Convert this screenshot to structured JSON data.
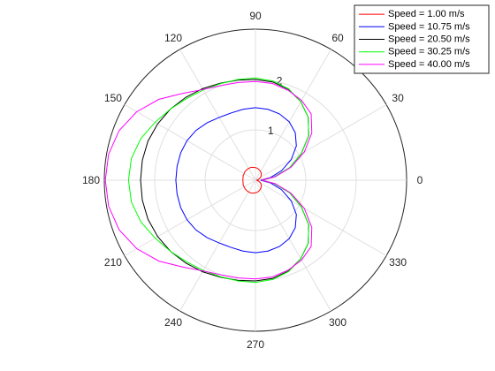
{
  "chart_data": {
    "type": "polar-line",
    "theta_unit": "degrees",
    "theta_ticks": [
      0,
      30,
      60,
      90,
      120,
      150,
      180,
      210,
      240,
      270,
      300,
      330
    ],
    "rlim": [
      0,
      3
    ],
    "r_ticks": [
      1,
      2
    ],
    "r_tick_labels": [
      "1",
      "2"
    ],
    "r_tick_label_angle": 80,
    "grid": true,
    "legend_placement": "top-right",
    "series": [
      {
        "name": "Speed = 1.00 m/s",
        "color": "#ff0000",
        "theta": [
          0,
          10,
          20,
          30,
          40,
          50,
          60,
          70,
          80,
          90,
          100,
          110,
          120,
          130,
          140,
          150,
          160,
          170,
          180,
          190,
          200,
          210,
          220,
          230,
          240,
          250,
          260,
          270,
          280,
          290,
          300,
          310,
          320,
          330,
          340,
          350,
          360
        ],
        "r": [
          0.02,
          0.05,
          0.08,
          0.12,
          0.15,
          0.18,
          0.2,
          0.22,
          0.24,
          0.25,
          0.26,
          0.27,
          0.27,
          0.27,
          0.27,
          0.26,
          0.26,
          0.25,
          0.25,
          0.25,
          0.26,
          0.26,
          0.27,
          0.27,
          0.27,
          0.27,
          0.26,
          0.25,
          0.24,
          0.22,
          0.2,
          0.18,
          0.15,
          0.12,
          0.08,
          0.05,
          0.02
        ]
      },
      {
        "name": "Speed = 10.75 m/s",
        "color": "#0000ff",
        "theta": [
          0,
          10,
          20,
          30,
          40,
          50,
          60,
          70,
          80,
          90,
          100,
          110,
          120,
          130,
          140,
          150,
          160,
          170,
          180,
          190,
          200,
          210,
          220,
          230,
          240,
          250,
          260,
          270,
          280,
          290,
          300,
          310,
          320,
          330,
          340,
          350,
          360
        ],
        "r": [
          0.1,
          0.3,
          0.55,
          0.82,
          1.06,
          1.23,
          1.34,
          1.4,
          1.43,
          1.44,
          1.43,
          1.42,
          1.44,
          1.49,
          1.54,
          1.57,
          1.58,
          1.58,
          1.58,
          1.58,
          1.58,
          1.57,
          1.54,
          1.49,
          1.44,
          1.42,
          1.43,
          1.44,
          1.43,
          1.4,
          1.34,
          1.23,
          1.06,
          0.82,
          0.55,
          0.3,
          0.1
        ]
      },
      {
        "name": "Speed = 20.50 m/s",
        "color": "#000000",
        "theta": [
          0,
          10,
          20,
          30,
          40,
          50,
          60,
          70,
          80,
          90,
          100,
          110,
          120,
          130,
          140,
          150,
          160,
          170,
          180,
          190,
          200,
          210,
          220,
          230,
          240,
          250,
          260,
          270,
          280,
          290,
          300,
          310,
          320,
          330,
          340,
          350,
          360
        ],
        "r": [
          0.12,
          0.38,
          0.72,
          1.05,
          1.38,
          1.63,
          1.8,
          1.92,
          1.98,
          2.0,
          2.02,
          2.05,
          2.1,
          2.15,
          2.2,
          2.24,
          2.27,
          2.28,
          2.28,
          2.28,
          2.27,
          2.24,
          2.2,
          2.15,
          2.1,
          2.05,
          2.02,
          2.0,
          1.98,
          1.92,
          1.8,
          1.63,
          1.38,
          1.05,
          0.72,
          0.38,
          0.12
        ]
      },
      {
        "name": "Speed = 30.25 m/s",
        "color": "#00ff00",
        "theta": [
          0,
          10,
          20,
          30,
          40,
          50,
          60,
          70,
          80,
          90,
          100,
          110,
          120,
          130,
          140,
          150,
          160,
          170,
          180,
          190,
          200,
          210,
          220,
          230,
          240,
          250,
          260,
          270,
          280,
          290,
          300,
          310,
          320,
          330,
          340,
          350,
          360
        ],
        "r": [
          0.12,
          0.38,
          0.72,
          1.05,
          1.38,
          1.63,
          1.8,
          1.93,
          2.0,
          2.03,
          2.03,
          2.04,
          2.07,
          2.12,
          2.2,
          2.3,
          2.42,
          2.5,
          2.52,
          2.5,
          2.42,
          2.3,
          2.2,
          2.12,
          2.07,
          2.04,
          2.03,
          2.03,
          2.0,
          1.93,
          1.8,
          1.63,
          1.38,
          1.05,
          0.72,
          0.38,
          0.12
        ]
      },
      {
        "name": "Speed = 40.00 m/s",
        "color": "#ff00ff",
        "theta": [
          0,
          10,
          20,
          30,
          40,
          50,
          60,
          70,
          80,
          90,
          100,
          110,
          120,
          130,
          140,
          150,
          160,
          170,
          180,
          190,
          200,
          210,
          220,
          230,
          240,
          250,
          260,
          270,
          280,
          290,
          300,
          310,
          320,
          330,
          340,
          350,
          360
        ],
        "r": [
          0.12,
          0.4,
          0.75,
          1.12,
          1.46,
          1.72,
          1.83,
          1.9,
          1.95,
          1.96,
          1.97,
          2.0,
          2.08,
          2.25,
          2.5,
          2.72,
          2.88,
          2.96,
          2.98,
          2.96,
          2.88,
          2.72,
          2.5,
          2.25,
          2.08,
          2.0,
          1.97,
          1.96,
          1.95,
          1.9,
          1.83,
          1.72,
          1.46,
          1.12,
          0.75,
          0.4,
          0.12
        ]
      }
    ]
  }
}
